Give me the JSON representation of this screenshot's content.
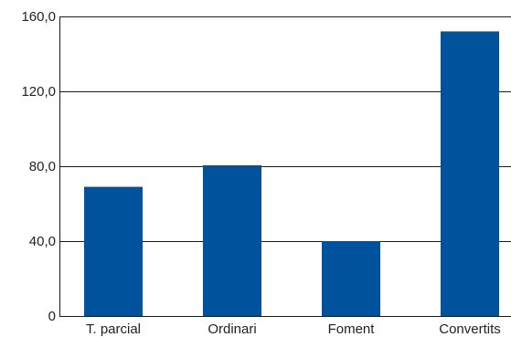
{
  "chart_data": {
    "type": "bar",
    "categories": [
      "T. parcial",
      "Ordinari",
      "Foment",
      "Convertits"
    ],
    "values": [
      69,
      80.5,
      40,
      152
    ],
    "ylim": [
      0,
      160
    ],
    "y_ticks": [
      0,
      40,
      80,
      120,
      160
    ],
    "y_tick_labels": [
      "0",
      "40,0",
      "80,0",
      "120,0",
      "160,0"
    ],
    "title": "",
    "xlabel": "",
    "ylabel": "",
    "grid": true,
    "bar_color": "#00529c",
    "grid_color": "#1a1a1a",
    "axis_color": "#1a1a1a"
  }
}
